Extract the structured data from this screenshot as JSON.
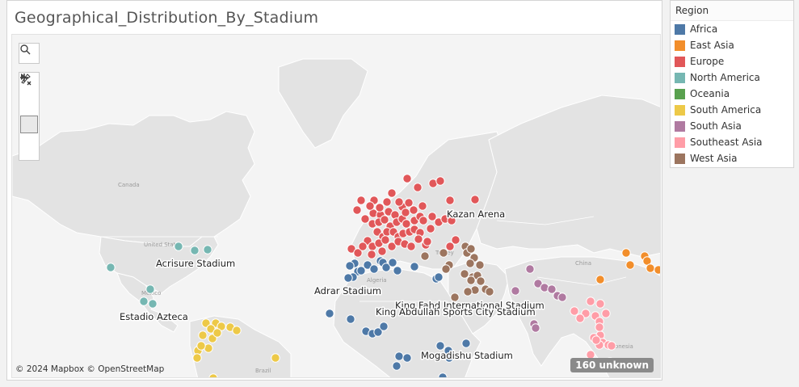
{
  "worksheet": {
    "title": "Geographical_Distribution_By_Stadium"
  },
  "legend": {
    "title": "Region",
    "items": [
      {
        "label": "Africa",
        "color": "#4e79a7"
      },
      {
        "label": "East Asia",
        "color": "#f28e2b"
      },
      {
        "label": "Europe",
        "color": "#e15759"
      },
      {
        "label": "North America",
        "color": "#76b7b2"
      },
      {
        "label": "Oceania",
        "color": "#59a14f"
      },
      {
        "label": "South America",
        "color": "#edc948"
      },
      {
        "label": "South Asia",
        "color": "#b07aa1"
      },
      {
        "label": "Southeast Asia",
        "color": "#ff9da7"
      },
      {
        "label": "West Asia",
        "color": "#9c755f"
      }
    ]
  },
  "map": {
    "attribution": "© 2024 Mapbox © OpenStreetMap",
    "unknown_badge": "160 unknown",
    "controls": {
      "search_icon": "search-icon",
      "zoom_in_icon": "plus-icon",
      "zoom_out_icon": "minus-icon",
      "pan_select_icon": "pin-cross-icon",
      "expand_icon": "play-triangle-icon"
    },
    "base_place_labels": [
      "Canada",
      "United States",
      "Mexico",
      "Brazil",
      "Algeria",
      "Turkey",
      "China",
      "Indonesia"
    ],
    "stadium_labels": [
      "Kazan Arena",
      "Acrisure Stadium",
      "Adrar Stadium",
      "King Fahd International Stadium",
      "King Abdullah Sports City Stadium",
      "Estadio Azteca",
      "Mogadishu Stadium"
    ]
  }
}
